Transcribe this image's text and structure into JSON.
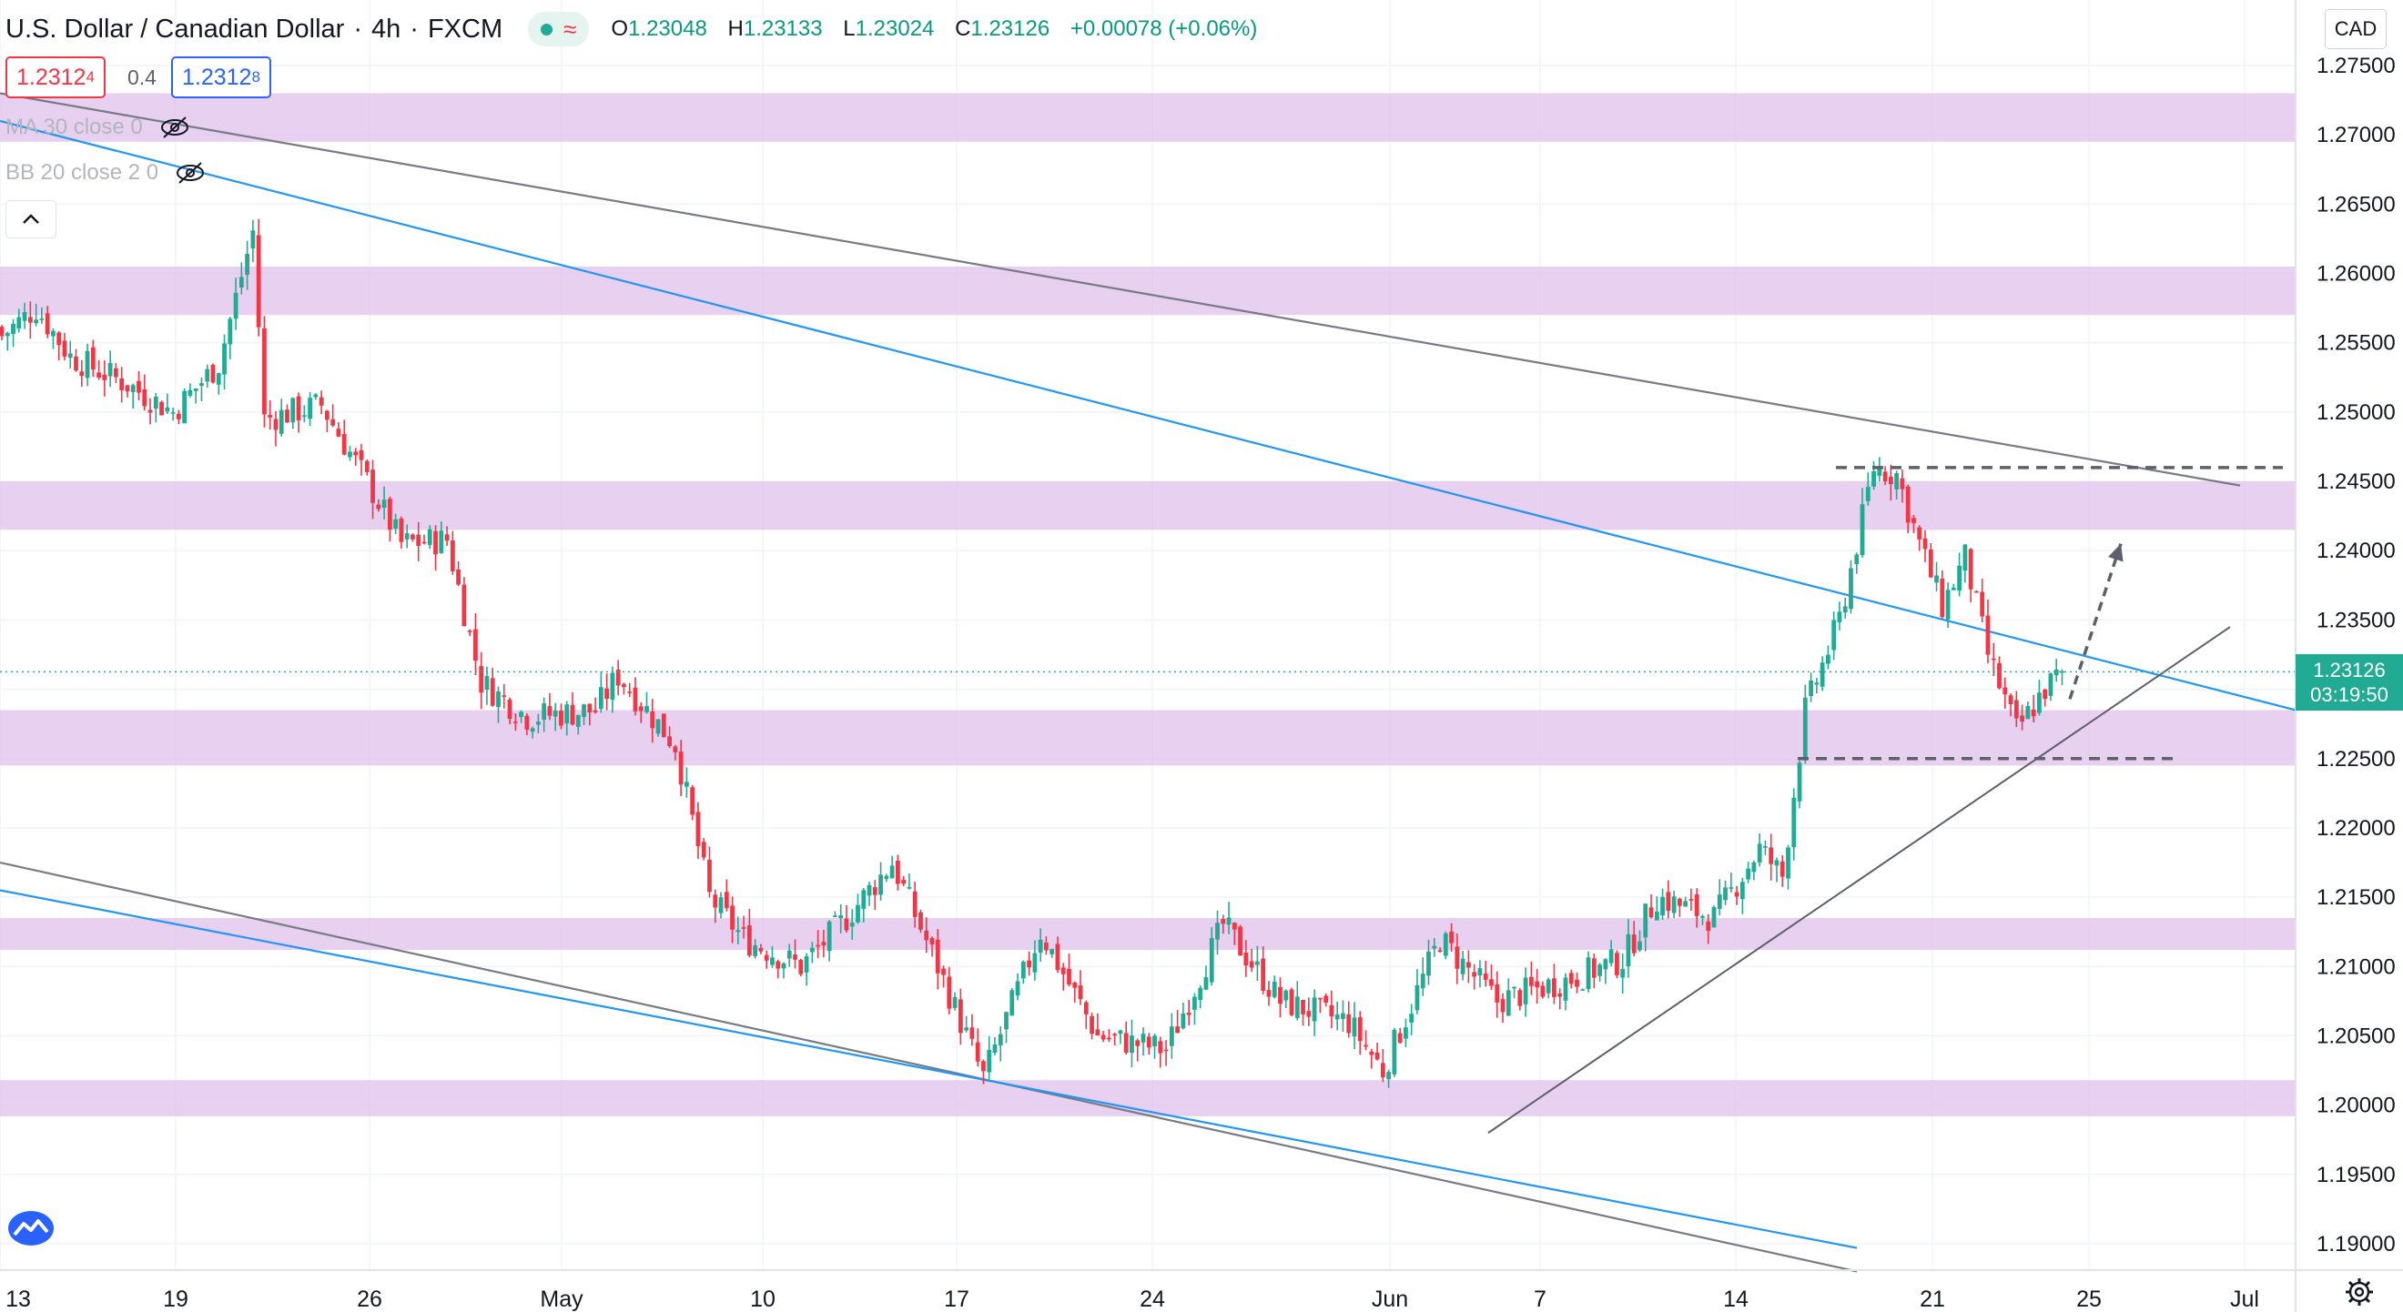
{
  "header": {
    "symbol": "U.S. Dollar / Canadian Dollar",
    "interval": "4h",
    "source": "FXCM",
    "ohlc": {
      "o_label": "O",
      "o": "1.23048",
      "h_label": "H",
      "h": "1.23133",
      "l_label": "L",
      "l": "1.23024",
      "c_label": "C",
      "c": "1.23126",
      "change": "+0.00078 (+0.06%)"
    }
  },
  "quote": {
    "bid": "1.2312",
    "bid_small": "4",
    "spread": "0.4",
    "ask": "1.2312",
    "ask_small": "8"
  },
  "indicators": [
    {
      "label": "MA 30 close 0"
    },
    {
      "label": "BB 20 close 2 0"
    }
  ],
  "currency": "CAD",
  "last_price": {
    "value": "1.23126",
    "countdown": "03:19:50"
  },
  "colors": {
    "up": "#22ab94",
    "down": "#f23645",
    "zone": "#e1c4ec",
    "blue_line": "#2196f3",
    "gray_line": "#787b86"
  },
  "chart_data": {
    "type": "candlestick",
    "y_ticks": [
      "1.27500",
      "1.27000",
      "1.26500",
      "1.26000",
      "1.25500",
      "1.25000",
      "1.24500",
      "1.24000",
      "1.23500",
      "1.23000",
      "1.22500",
      "1.22000",
      "1.21500",
      "1.21000",
      "1.20500",
      "1.20000",
      "1.19500",
      "1.19000"
    ],
    "ylim": [
      1.1885,
      1.2785
    ],
    "x_ticks": [
      "13",
      "19",
      "26",
      "May",
      "10",
      "17",
      "24",
      "Jun",
      "7",
      "14",
      "21",
      "25",
      "Jul"
    ],
    "grid": true,
    "zones": [
      [
        1.2695,
        1.273
      ],
      [
        1.257,
        1.2605
      ],
      [
        1.2415,
        1.245
      ],
      [
        1.2245,
        1.2285
      ],
      [
        1.2112,
        1.2135
      ],
      [
        1.1992,
        1.2018
      ]
    ],
    "close_path": [
      {
        "bar": 0,
        "y": 1.2555
      },
      {
        "bar": 6,
        "y": 1.2575
      },
      {
        "bar": 12,
        "y": 1.254
      },
      {
        "bar": 22,
        "y": 1.252
      },
      {
        "bar": 30,
        "y": 1.25
      },
      {
        "bar": 38,
        "y": 1.2535
      },
      {
        "bar": 44,
        "y": 1.263
      },
      {
        "bar": 46,
        "y": 1.2495
      },
      {
        "bar": 56,
        "y": 1.2505
      },
      {
        "bar": 64,
        "y": 1.245
      },
      {
        "bar": 70,
        "y": 1.2405
      },
      {
        "bar": 78,
        "y": 1.2408
      },
      {
        "bar": 84,
        "y": 1.2305
      },
      {
        "bar": 92,
        "y": 1.228
      },
      {
        "bar": 104,
        "y": 1.2285
      },
      {
        "bar": 108,
        "y": 1.231
      },
      {
        "bar": 118,
        "y": 1.226
      },
      {
        "bar": 124,
        "y": 1.215
      },
      {
        "bar": 130,
        "y": 1.212
      },
      {
        "bar": 140,
        "y": 1.21
      },
      {
        "bar": 148,
        "y": 1.2135
      },
      {
        "bar": 156,
        "y": 1.2175
      },
      {
        "bar": 164,
        "y": 1.21
      },
      {
        "bar": 172,
        "y": 1.202
      },
      {
        "bar": 182,
        "y": 1.2125
      },
      {
        "bar": 192,
        "y": 1.205
      },
      {
        "bar": 204,
        "y": 1.204
      },
      {
        "bar": 214,
        "y": 1.213
      },
      {
        "bar": 224,
        "y": 1.2075
      },
      {
        "bar": 236,
        "y": 1.206
      },
      {
        "bar": 242,
        "y": 1.2025
      },
      {
        "bar": 252,
        "y": 1.212
      },
      {
        "bar": 262,
        "y": 1.2075
      },
      {
        "bar": 274,
        "y": 1.209
      },
      {
        "bar": 284,
        "y": 1.2105
      },
      {
        "bar": 290,
        "y": 1.215
      },
      {
        "bar": 300,
        "y": 1.2135
      },
      {
        "bar": 308,
        "y": 1.2185
      },
      {
        "bar": 312,
        "y": 1.2165
      },
      {
        "bar": 316,
        "y": 1.2285
      },
      {
        "bar": 322,
        "y": 1.235
      },
      {
        "bar": 328,
        "y": 1.246
      },
      {
        "bar": 332,
        "y": 1.2455
      },
      {
        "bar": 336,
        "y": 1.2405
      },
      {
        "bar": 340,
        "y": 1.236
      },
      {
        "bar": 344,
        "y": 1.2395
      },
      {
        "bar": 348,
        "y": 1.2325
      },
      {
        "bar": 353,
        "y": 1.227
      },
      {
        "bar": 358,
        "y": 1.23
      },
      {
        "bar": 361,
        "y": 1.2313
      }
    ],
    "drawings": {
      "upper_gray_trendline": [
        {
          "date": "Apr 13",
          "y": 1.273
        },
        {
          "date": "Jun 27",
          "y": 1.2447
        }
      ],
      "upper_blue_trendline": [
        {
          "date": "Apr 13",
          "y": 1.271
        },
        {
          "date": "Jul 1",
          "y": 1.2285
        }
      ],
      "lower_gray_trendline": [
        {
          "date": "Apr 13",
          "y": 1.2175
        },
        {
          "date": "Jun 20",
          "y": 1.188
        }
      ],
      "lower_blue_trendline": [
        {
          "date": "Apr 13",
          "y": 1.2155
        },
        {
          "date": "Jun 20",
          "y": 1.1897
        }
      ],
      "rising_support_line": [
        {
          "date": "Jun 4",
          "y": 1.198
        },
        {
          "date": "Jun 28",
          "y": 1.2345
        }
      ],
      "resistance_dashed": {
        "y": 1.246,
        "from": "Jun 18",
        "to": "Jun 28"
      },
      "support_dashed": {
        "y": 1.225,
        "from": "Jun 17",
        "to": "Jun 26"
      },
      "projection_arrow": [
        {
          "date": "Jun 24",
          "y": 1.2293
        },
        {
          "date": "Jun 26",
          "y": 1.2405
        }
      ]
    }
  }
}
